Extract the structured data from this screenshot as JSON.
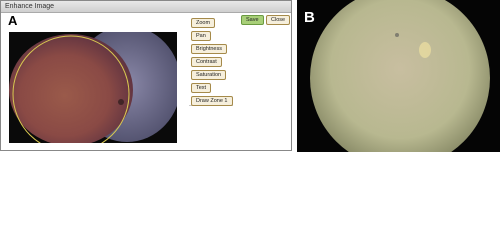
{
  "window": {
    "title": "Enhance Image",
    "panel_label": "A",
    "tools": [
      "Zoom",
      "Pan",
      "Brightness",
      "Contrast",
      "Saturation",
      "Text",
      "Draw Zone 1"
    ],
    "actions": [
      "Save",
      "Close"
    ]
  },
  "image_b": {
    "panel_label": "B"
  }
}
